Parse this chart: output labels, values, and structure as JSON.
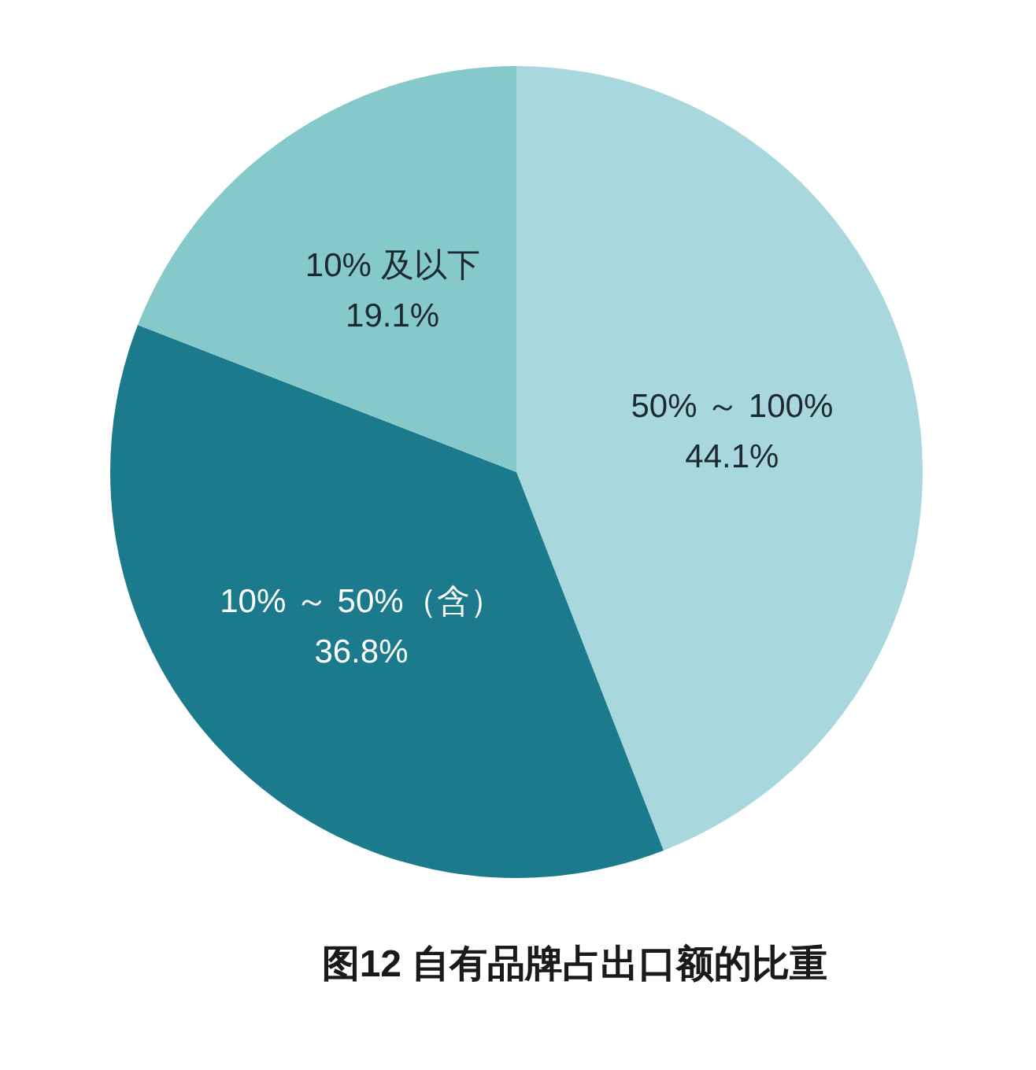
{
  "chart_data": {
    "type": "pie",
    "title": "图12 自有品牌占出口额的比重",
    "categories": [
      "50% ～ 100%",
      "10% ～ 50%（含）",
      "10% 及以下"
    ],
    "values": [
      44.1,
      36.8,
      19.1
    ],
    "value_labels": [
      "44.1%",
      "36.8%",
      "19.1%"
    ],
    "colors": [
      "#a8d8de",
      "#1b7a8c",
      "#86c9ca"
    ]
  }
}
